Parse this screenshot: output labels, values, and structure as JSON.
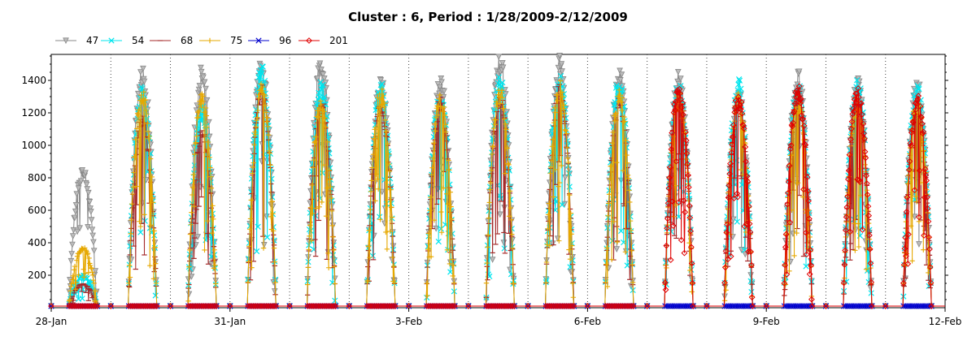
{
  "chart_data": {
    "type": "line",
    "title": "Cluster : 6, Period : 1/28/2009-2/12/2009",
    "xlabel": "",
    "ylabel": "",
    "x_range": [
      "2009-01-28",
      "2009-02-12"
    ],
    "x_tick_labels": [
      "28-Jan",
      "31-Jan",
      "3-Feb",
      "6-Feb",
      "9-Feb",
      "12-Feb"
    ],
    "y_ticks": [
      200,
      400,
      600,
      800,
      1000,
      1200,
      1400
    ],
    "ylim": [
      0,
      1560
    ],
    "grid": "dotted vertical lines at day boundaries",
    "legend_position": "top-left",
    "days": [
      "2009-01-28",
      "2009-01-29",
      "2009-01-30",
      "2009-01-31",
      "2009-02-01",
      "2009-02-02",
      "2009-02-03",
      "2009-02-04",
      "2009-02-05",
      "2009-02-06",
      "2009-02-07",
      "2009-02-08",
      "2009-02-09",
      "2009-02-10",
      "2009-02-11"
    ],
    "daily_window_hours": [
      7,
      18.5
    ],
    "series": [
      {
        "name": "47",
        "color": "#888888",
        "marker": "triangle-down",
        "daily_peak": [
          860,
          1490,
          1510,
          1550,
          1550,
          1430,
          1430,
          1560,
          1560,
          1480,
          1480,
          1360,
          1480,
          1430,
          1420
        ]
      },
      {
        "name": "54",
        "color": "#00e5ee",
        "marker": "x",
        "daily_peak": [
          200,
          1380,
          1260,
          1500,
          1420,
          1390,
          1360,
          1440,
          1460,
          1420,
          1400,
          1410,
          1400,
          1420,
          1380
        ]
      },
      {
        "name": "68",
        "color": "#a52a2a",
        "marker": "dash",
        "daily_peak": [
          150,
          1200,
          1100,
          1380,
          1300,
          1290,
          1310,
          1330,
          1380,
          1320,
          1380,
          1290,
          1360,
          1330,
          1250
        ]
      },
      {
        "name": "75",
        "color": "#e6a800",
        "marker": "plus",
        "daily_peak": [
          380,
          1360,
          1330,
          1400,
          1320,
          1360,
          1330,
          1370,
          1400,
          1360,
          1330,
          1330,
          1300,
          1300,
          1300
        ]
      },
      {
        "name": "96",
        "color": "#0000cc",
        "marker": "star",
        "daily_peak": [
          10,
          10,
          10,
          10,
          10,
          10,
          10,
          10,
          10,
          10,
          10,
          10,
          10,
          10,
          10
        ]
      },
      {
        "name": "201",
        "color": "#e00000",
        "marker": "diamond",
        "daily_peak": [
          0,
          0,
          0,
          0,
          0,
          0,
          0,
          0,
          0,
          0,
          1400,
          1330,
          1380,
          1370,
          1330
        ]
      }
    ]
  }
}
